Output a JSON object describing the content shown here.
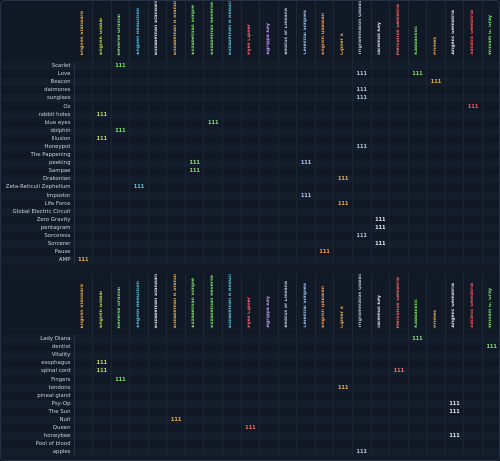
{
  "columns": [
    {
      "label": "English Standard",
      "color": "#e8b04a"
    },
    {
      "label": "English Global",
      "color": "#c2d84a"
    },
    {
      "label": "Reverse Ordinal",
      "color": "#7ee36a"
    },
    {
      "label": "English Reduction",
      "color": "#57c7e0"
    },
    {
      "label": "Elizabethan Standard",
      "color": "#e6e6e6"
    },
    {
      "label": "Elizabethan R Standard",
      "color": "#e8b04a"
    },
    {
      "label": "Elizabethan Simple",
      "color": "#7ee36a"
    },
    {
      "label": "Elizabethan Reverse",
      "color": "#7ee36a"
    },
    {
      "label": "Elizabethan R Reduction",
      "color": "#57c7e0"
    },
    {
      "label": "Pyes Cipher",
      "color": "#ff6b6b"
    },
    {
      "label": "Agrippa Key",
      "color": "#c79cf5"
    },
    {
      "label": "Beatus of Liebana",
      "color": "#b7c7d9"
    },
    {
      "label": "Celestial Simplex",
      "color": "#9fc5f0"
    },
    {
      "label": "English Qabalah",
      "color": "#ff9a4a"
    },
    {
      "label": "Cipher X",
      "color": "#e8b04a"
    },
    {
      "label": "Trigrammaton Qabalah",
      "color": "#b7c7d9"
    },
    {
      "label": "Tacemus Key",
      "color": "#e6e6e6"
    },
    {
      "label": "Mercurius Gematria",
      "color": "#ff6b6b"
    },
    {
      "label": "Kabbalistic",
      "color": "#7ee36a"
    },
    {
      "label": "Primes",
      "color": "#e8b04a"
    },
    {
      "label": "Angelic Gematria",
      "color": "#e6e6e6"
    },
    {
      "label": "Satanic Gematria",
      "color": "#ff5a5a"
    },
    {
      "label": "William G. Gray",
      "color": "#7ee36a"
    }
  ],
  "table1": {
    "rows": [
      {
        "label": "Scarlet",
        "cells": [
          "",
          "",
          "111",
          "",
          "",
          "",
          "",
          "",
          "",
          "",
          "",
          "",
          "",
          "",
          "",
          "",
          "",
          "",
          "",
          "",
          "",
          "",
          ""
        ]
      },
      {
        "label": "Love",
        "cells": [
          "",
          "",
          "",
          "",
          "",
          "",
          "",
          "",
          "",
          "",
          "",
          "",
          "",
          "",
          "",
          "111",
          "",
          "",
          "111",
          "",
          "",
          "",
          ""
        ]
      },
      {
        "label": "Beacon",
        "cells": [
          "",
          "",
          "",
          "",
          "",
          "",
          "",
          "",
          "",
          "",
          "",
          "",
          "",
          "",
          "",
          "",
          "",
          "",
          "",
          "111",
          "",
          "",
          ""
        ]
      },
      {
        "label": "daimones",
        "cells": [
          "",
          "",
          "",
          "",
          "",
          "",
          "",
          "",
          "",
          "",
          "",
          "",
          "",
          "",
          "",
          "111",
          "",
          "",
          "",
          "",
          "",
          "",
          ""
        ]
      },
      {
        "label": "sunglass",
        "cells": [
          "",
          "",
          "",
          "",
          "",
          "",
          "",
          "",
          "",
          "",
          "",
          "",
          "",
          "",
          "",
          "111",
          "",
          "",
          "",
          "",
          "",
          "",
          ""
        ]
      },
      {
        "label": "Oz",
        "cells": [
          "",
          "",
          "",
          "",
          "",
          "",
          "",
          "",
          "",
          "",
          "",
          "",
          "",
          "",
          "",
          "",
          "",
          "",
          "",
          "",
          "",
          "111",
          ""
        ]
      },
      {
        "label": "rabbit holes",
        "cells": [
          "",
          "111",
          "",
          "",
          "",
          "",
          "",
          "",
          "",
          "",
          "",
          "",
          "",
          "",
          "",
          "",
          "",
          "",
          "",
          "",
          "",
          "",
          ""
        ]
      },
      {
        "label": "blue eyes",
        "cells": [
          "",
          "",
          "",
          "",
          "",
          "",
          "",
          "111",
          "",
          "",
          "",
          "",
          "",
          "",
          "",
          "",
          "",
          "",
          "",
          "",
          "",
          "",
          ""
        ]
      },
      {
        "label": "dolphin",
        "cells": [
          "",
          "",
          "111",
          "",
          "",
          "",
          "",
          "",
          "",
          "",
          "",
          "",
          "",
          "",
          "",
          "",
          "",
          "",
          "",
          "",
          "",
          "",
          ""
        ]
      },
      {
        "label": "Illusion",
        "cells": [
          "",
          "111",
          "",
          "",
          "",
          "",
          "",
          "",
          "",
          "",
          "",
          "",
          "",
          "",
          "",
          "",
          "",
          "",
          "",
          "",
          "",
          "",
          ""
        ]
      },
      {
        "label": "Honeypot",
        "cells": [
          "",
          "",
          "",
          "",
          "",
          "",
          "",
          "",
          "",
          "",
          "",
          "",
          "",
          "",
          "",
          "111",
          "",
          "",
          "",
          "",
          "",
          "",
          ""
        ]
      },
      {
        "label": "The Pappening",
        "cells": [
          "",
          "",
          "",
          "",
          "",
          "",
          "",
          "",
          "",
          "",
          "",
          "",
          "",
          "",
          "",
          "",
          "",
          "",
          "",
          "",
          "",
          "",
          ""
        ]
      },
      {
        "label": "peeking",
        "cells": [
          "",
          "",
          "",
          "",
          "",
          "",
          "111",
          "",
          "",
          "",
          "",
          "",
          "111",
          "",
          "",
          "",
          "",
          "",
          "",
          "",
          "",
          "",
          ""
        ]
      },
      {
        "label": "Sampae",
        "cells": [
          "",
          "",
          "",
          "",
          "",
          "",
          "111",
          "",
          "",
          "",
          "",
          "",
          "",
          "",
          "",
          "",
          "",
          "",
          "",
          "",
          "",
          "",
          ""
        ]
      },
      {
        "label": "Drakonian",
        "cells": [
          "",
          "",
          "",
          "",
          "",
          "",
          "",
          "",
          "",
          "",
          "",
          "",
          "",
          "",
          "111",
          "",
          "",
          "",
          "",
          "",
          "",
          "",
          ""
        ]
      },
      {
        "label": "Zeta-Reticuli Zephellum",
        "cells": [
          "",
          "",
          "",
          "111",
          "",
          "",
          "",
          "",
          "",
          "",
          "",
          "",
          "",
          "",
          "",
          "",
          "",
          "",
          "",
          "",
          "",
          "",
          ""
        ]
      },
      {
        "label": "Impostor",
        "cells": [
          "",
          "",
          "",
          "",
          "",
          "",
          "",
          "",
          "",
          "",
          "",
          "",
          "111",
          "",
          "",
          "",
          "",
          "",
          "",
          "",
          "",
          "",
          ""
        ]
      },
      {
        "label": "Life Force",
        "cells": [
          "",
          "",
          "",
          "",
          "",
          "",
          "",
          "",
          "",
          "",
          "",
          "",
          "",
          "",
          "111",
          "",
          "",
          "",
          "",
          "",
          "",
          "",
          ""
        ]
      },
      {
        "label": "Global Electric Circuit",
        "cells": [
          "",
          "",
          "",
          "",
          "",
          "",
          "",
          "",
          "",
          "",
          "",
          "",
          "",
          "",
          "",
          "",
          "",
          "",
          "",
          "",
          "",
          "",
          ""
        ]
      },
      {
        "label": "Zero Gravity",
        "cells": [
          "",
          "",
          "",
          "",
          "",
          "",
          "",
          "",
          "",
          "",
          "",
          "",
          "",
          "",
          "",
          "",
          "111",
          "",
          "",
          "",
          "",
          "",
          ""
        ]
      },
      {
        "label": "pentagram",
        "cells": [
          "",
          "",
          "",
          "",
          "",
          "",
          "",
          "",
          "",
          "",
          "",
          "",
          "",
          "",
          "",
          "",
          "111",
          "",
          "",
          "",
          "",
          "",
          ""
        ]
      },
      {
        "label": "Sorceress",
        "cells": [
          "",
          "",
          "",
          "",
          "",
          "",
          "",
          "",
          "",
          "",
          "",
          "",
          "",
          "",
          "",
          "111",
          "",
          "",
          "",
          "",
          "",
          "",
          ""
        ]
      },
      {
        "label": "Sorcerer",
        "cells": [
          "",
          "",
          "",
          "",
          "",
          "",
          "",
          "",
          "",
          "",
          "",
          "",
          "",
          "",
          "",
          "",
          "111",
          "",
          "",
          "",
          "",
          "",
          ""
        ]
      },
      {
        "label": "Pause",
        "cells": [
          "",
          "",
          "",
          "",
          "",
          "",
          "",
          "",
          "",
          "",
          "",
          "",
          "",
          "111",
          "",
          "",
          "",
          "",
          "",
          "",
          "",
          "",
          ""
        ]
      },
      {
        "label": "AMP",
        "cells": [
          "111",
          "",
          "",
          "",
          "",
          "",
          "",
          "",
          "",
          "",
          "",
          "",
          "",
          "",
          "",
          "",
          "",
          "",
          "",
          "",
          "",
          "",
          ""
        ]
      }
    ]
  },
  "table2": {
    "rows": [
      {
        "label": "Lady Diana",
        "cells": [
          "",
          "",
          "",
          "",
          "",
          "",
          "",
          "",
          "",
          "",
          "",
          "",
          "",
          "",
          "",
          "",
          "",
          "",
          "111",
          "",
          "",
          "",
          ""
        ]
      },
      {
        "label": "dentist",
        "cells": [
          "",
          "",
          "",
          "",
          "",
          "",
          "",
          "",
          "",
          "",
          "",
          "",
          "",
          "",
          "",
          "",
          "",
          "",
          "",
          "",
          "",
          "",
          "111"
        ]
      },
      {
        "label": "Vitality",
        "cells": [
          "",
          "",
          "",
          "",
          "",
          "",
          "",
          "",
          "",
          "",
          "",
          "",
          "",
          "",
          "",
          "",
          "",
          "",
          "",
          "",
          "",
          "",
          ""
        ]
      },
      {
        "label": "esophagus",
        "cells": [
          "",
          "111",
          "",
          "",
          "",
          "",
          "",
          "",
          "",
          "",
          "",
          "",
          "",
          "",
          "",
          "",
          "",
          "",
          "",
          "",
          "",
          "",
          ""
        ]
      },
      {
        "label": "spinal cord",
        "cells": [
          "",
          "111",
          "",
          "",
          "",
          "",
          "",
          "",
          "",
          "",
          "",
          "",
          "",
          "",
          "",
          "",
          "",
          "111",
          "",
          "",
          "",
          "",
          ""
        ]
      },
      {
        "label": "Fingers",
        "cells": [
          "",
          "",
          "111",
          "",
          "",
          "",
          "",
          "",
          "",
          "",
          "",
          "",
          "",
          "",
          "",
          "",
          "",
          "",
          "",
          "",
          "",
          "",
          ""
        ]
      },
      {
        "label": "tendons",
        "cells": [
          "",
          "",
          "",
          "",
          "",
          "",
          "",
          "",
          "",
          "",
          "",
          "",
          "",
          "",
          "111",
          "",
          "",
          "",
          "",
          "",
          "",
          "",
          ""
        ]
      },
      {
        "label": "pineal gland",
        "cells": [
          "",
          "",
          "",
          "",
          "",
          "",
          "",
          "",
          "",
          "",
          "",
          "",
          "",
          "",
          "",
          "",
          "",
          "",
          "",
          "",
          "",
          "",
          ""
        ]
      },
      {
        "label": "Psy-Op",
        "cells": [
          "",
          "",
          "",
          "",
          "",
          "",
          "",
          "",
          "",
          "",
          "",
          "",
          "",
          "",
          "",
          "",
          "",
          "",
          "",
          "",
          "111",
          "",
          ""
        ]
      },
      {
        "label": "The Sun",
        "cells": [
          "",
          "",
          "",
          "",
          "",
          "",
          "",
          "",
          "",
          "",
          "",
          "",
          "",
          "",
          "",
          "",
          "",
          "",
          "",
          "",
          "111",
          "",
          ""
        ]
      },
      {
        "label": "Nuit",
        "cells": [
          "",
          "",
          "",
          "",
          "",
          "111",
          "",
          "",
          "",
          "",
          "",
          "",
          "",
          "",
          "",
          "",
          "",
          "",
          "",
          "",
          "",
          "",
          ""
        ]
      },
      {
        "label": "Queen",
        "cells": [
          "",
          "",
          "",
          "",
          "",
          "",
          "",
          "",
          "",
          "111",
          "",
          "",
          "",
          "",
          "",
          "",
          "",
          "",
          "",
          "",
          "",
          "",
          ""
        ]
      },
      {
        "label": "honeybee",
        "cells": [
          "",
          "",
          "",
          "",
          "",
          "",
          "",
          "",
          "",
          "",
          "",
          "",
          "",
          "",
          "",
          "",
          "",
          "",
          "",
          "",
          "111",
          "",
          ""
        ]
      },
      {
        "label": "Pool of blood",
        "cells": [
          "",
          "",
          "",
          "",
          "",
          "",
          "",
          "",
          "",
          "",
          "",
          "",
          "",
          "",
          "",
          "",
          "",
          "",
          "",
          "",
          "",
          "",
          ""
        ]
      },
      {
        "label": "apples",
        "cells": [
          "",
          "",
          "",
          "",
          "",
          "",
          "",
          "",
          "",
          "",
          "",
          "",
          "",
          "",
          "",
          "111",
          "",
          "",
          "",
          "",
          "",
          "",
          ""
        ]
      }
    ]
  }
}
